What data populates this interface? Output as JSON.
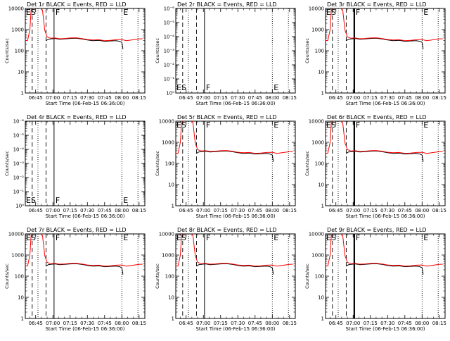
{
  "chart_data": [
    {
      "type": "line",
      "title": "Det 1r BLACK = Events, RED = LLD",
      "ylabel": "Counts/sec",
      "xlabel": "Start Time (06-Feb-15 06:36:00)",
      "scale": "log",
      "ylim": [
        1,
        10000
      ],
      "yticks": [
        "1",
        "10",
        "100",
        "1000",
        "10000"
      ],
      "xticks": [
        "06:45",
        "07:00",
        "07:15",
        "07:30",
        "07:45",
        "08:00",
        "08:15"
      ],
      "markers": [
        "ES",
        "F",
        "E"
      ],
      "has_data": true,
      "heavy_line": false
    },
    {
      "type": "line",
      "title": "Det 2r BLACK = Events, RED = LLD",
      "ylabel": "Counts/sec",
      "xlabel": "Start Time (06-Feb-15 06:36:00)",
      "scale": "log",
      "ylim": [
        1,
        1e-06
      ],
      "yticks": [
        "10⁰",
        "10⁻¹",
        "10⁻²",
        "10⁻³",
        "10⁻⁴",
        "10⁻⁵",
        "10⁻⁶"
      ],
      "xticks": [
        "06:45",
        "07:00",
        "07:15",
        "07:30",
        "07:45",
        "08:00",
        "08:15"
      ],
      "markers": [
        "ES",
        "F",
        "E"
      ],
      "has_data": false,
      "heavy_line": false
    },
    {
      "type": "line",
      "title": "Det 3r BLACK = Events, RED = LLD",
      "ylabel": "Counts/sec",
      "xlabel": "Start Time (06-Feb-15 06:36:00)",
      "scale": "log",
      "ylim": [
        1,
        10000
      ],
      "yticks": [
        "1",
        "10",
        "100",
        "1000",
        "10000"
      ],
      "xticks": [
        "06:45",
        "07:00",
        "07:15",
        "07:30",
        "07:45",
        "08:00",
        "08:15"
      ],
      "markers": [
        "ES",
        "F",
        "E"
      ],
      "has_data": true,
      "heavy_line": true
    },
    {
      "type": "line",
      "title": "Det 4r BLACK = Events, RED = LLD",
      "ylabel": "Counts/sec",
      "xlabel": "Start Time (06-Feb-15 06:36:00)",
      "scale": "log",
      "ylim": [
        1,
        1e-06
      ],
      "yticks": [
        "10⁰",
        "10⁻¹",
        "10⁻²",
        "10⁻³",
        "10⁻⁴",
        "10⁻⁵",
        "10⁻⁶"
      ],
      "xticks": [
        "06:45",
        "07:00",
        "07:15",
        "07:30",
        "07:45",
        "08:00",
        "08:15"
      ],
      "markers": [
        "ES",
        "F",
        "E"
      ],
      "has_data": false,
      "heavy_line": false
    },
    {
      "type": "line",
      "title": "Det 5r BLACK = Events, RED = LLD",
      "ylabel": "Counts/sec",
      "xlabel": "Start Time (06-Feb-15 06:36:00)",
      "scale": "log",
      "ylim": [
        1,
        10000
      ],
      "yticks": [
        "1",
        "10",
        "100",
        "1000",
        "10000"
      ],
      "xticks": [
        "06:45",
        "07:00",
        "07:15",
        "07:30",
        "07:45",
        "08:00",
        "08:15"
      ],
      "markers": [
        "ES",
        "F",
        "E"
      ],
      "has_data": true,
      "heavy_line": false
    },
    {
      "type": "line",
      "title": "Det 6r BLACK = Events, RED = LLD",
      "ylabel": "Counts/sec",
      "xlabel": "Start Time (06-Feb-15 06:36:00)",
      "scale": "log",
      "ylim": [
        1,
        10000
      ],
      "yticks": [
        "1",
        "10",
        "100",
        "1000",
        "10000"
      ],
      "xticks": [
        "06:45",
        "07:00",
        "07:15",
        "07:30",
        "07:45",
        "08:00",
        "08:15"
      ],
      "markers": [
        "ES",
        "F",
        "E"
      ],
      "has_data": true,
      "heavy_line": true
    },
    {
      "type": "line",
      "title": "Det 7r BLACK = Events, RED = LLD",
      "ylabel": "Counts/sec",
      "xlabel": "Start Time (06-Feb-15 06:36:00)",
      "scale": "log",
      "ylim": [
        1,
        10000
      ],
      "yticks": [
        "1",
        "10",
        "100",
        "1000",
        "10000"
      ],
      "xticks": [
        "06:45",
        "07:00",
        "07:15",
        "07:30",
        "07:45",
        "08:00",
        "08:15"
      ],
      "markers": [
        "ES",
        "F",
        "E"
      ],
      "has_data": true,
      "heavy_line": false
    },
    {
      "type": "line",
      "title": "Det 8r BLACK = Events, RED = LLD",
      "ylabel": "Counts/sec",
      "xlabel": "Start Time (06-Feb-15 06:36:00)",
      "scale": "log",
      "ylim": [
        1,
        10000
      ],
      "yticks": [
        "1",
        "10",
        "100",
        "1000",
        "10000"
      ],
      "xticks": [
        "06:45",
        "07:00",
        "07:15",
        "07:30",
        "07:45",
        "08:00",
        "08:15"
      ],
      "markers": [
        "ES",
        "F",
        "E"
      ],
      "has_data": true,
      "heavy_line": false
    },
    {
      "type": "line",
      "title": "Det 9r BLACK = Events, RED = LLD",
      "ylabel": "Counts/sec",
      "xlabel": "Start Time (06-Feb-15 06:36:00)",
      "scale": "log",
      "ylim": [
        1,
        10000
      ],
      "yticks": [
        "1",
        "10",
        "100",
        "1000",
        "10000"
      ],
      "xticks": [
        "06:45",
        "07:00",
        "07:15",
        "07:30",
        "07:45",
        "08:00",
        "08:15"
      ],
      "markers": [
        "ES",
        "F",
        "E"
      ],
      "has_data": true,
      "heavy_line": true
    }
  ],
  "series_colors": {
    "events": "#000000",
    "lld": "#ff0000"
  },
  "time_range": [
    "06:36",
    "08:20"
  ],
  "event_times": {
    "dash1": "06:42",
    "dot1": "06:47",
    "dash2": "06:54",
    "solid": "07:01",
    "dot_end1": "08:00",
    "dot_end2": "08:14"
  },
  "marker_times": {
    "ES": "06:36",
    "F": "07:01",
    "E": "08:00"
  },
  "series": {
    "lld": [
      [
        "06:36",
        300
      ],
      [
        "06:38",
        310
      ],
      [
        "06:40",
        1000
      ],
      [
        "06:41",
        8000
      ],
      [
        "06:42",
        11000
      ],
      [
        "06:43",
        11000
      ],
      [
        "06:44",
        11000
      ],
      [
        "06:47",
        11000
      ],
      [
        "06:49",
        11000
      ],
      [
        "06:50",
        10500
      ],
      [
        "06:51",
        8000
      ],
      [
        "06:52",
        2500
      ],
      [
        "06:53",
        900
      ],
      [
        "06:55",
        450
      ],
      [
        "06:58",
        390
      ],
      [
        "07:02",
        400
      ],
      [
        "07:06",
        370
      ],
      [
        "07:10",
        380
      ],
      [
        "07:15",
        400
      ],
      [
        "07:20",
        410
      ],
      [
        "07:25",
        380
      ],
      [
        "07:30",
        340
      ],
      [
        "07:35",
        320
      ],
      [
        "07:40",
        330
      ],
      [
        "07:45",
        300
      ],
      [
        "07:50",
        310
      ],
      [
        "07:55",
        330
      ],
      [
        "08:00",
        340
      ],
      [
        "08:04",
        300
      ],
      [
        "08:10",
        330
      ],
      [
        "08:15",
        360
      ],
      [
        "08:18",
        370
      ]
    ],
    "events": [
      [
        "06:54",
        300
      ],
      [
        "06:56",
        350
      ],
      [
        "06:58",
        360
      ],
      [
        "07:02",
        380
      ],
      [
        "07:06",
        350
      ],
      [
        "07:10",
        360
      ],
      [
        "07:15",
        380
      ],
      [
        "07:20",
        390
      ],
      [
        "07:25",
        360
      ],
      [
        "07:30",
        320
      ],
      [
        "07:35",
        300
      ],
      [
        "07:40",
        310
      ],
      [
        "07:45",
        280
      ],
      [
        "07:50",
        290
      ],
      [
        "07:55",
        300
      ],
      [
        "07:58",
        280
      ],
      [
        "08:00",
        250
      ],
      [
        "08:01",
        120
      ]
    ]
  }
}
